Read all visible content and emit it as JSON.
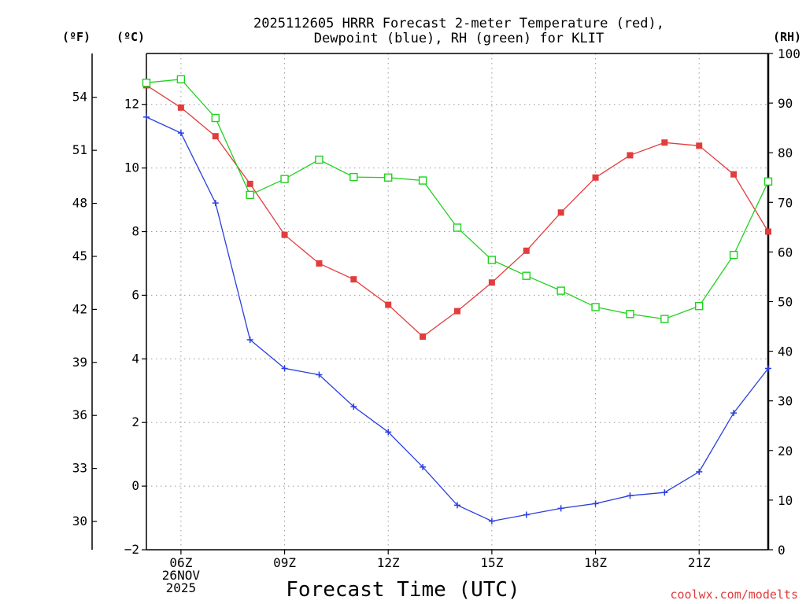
{
  "title_line1": "2025112605 HRRR Forecast 2-meter Temperature (red),",
  "title_line2": "Dewpoint (blue), RH (green) for KLIT",
  "credit": "coolwx.com/modelts",
  "chart_data": {
    "type": "line",
    "title": "2025112605 HRRR Forecast 2-meter Temperature (red), Dewpoint (blue), RH (green) for KLIT",
    "xlabel": "Forecast Time (UTC)",
    "x": [
      5,
      6,
      7,
      8,
      9,
      10,
      11,
      12,
      13,
      14,
      15,
      16,
      17,
      18,
      19,
      20,
      21,
      22,
      23
    ],
    "xlim": [
      5,
      23
    ],
    "x_ticks": [
      {
        "x": 6,
        "lines": [
          "06Z",
          "26NOV",
          "2025"
        ]
      },
      {
        "x": 9,
        "lines": [
          "09Z"
        ]
      },
      {
        "x": 12,
        "lines": [
          "12Z"
        ]
      },
      {
        "x": 15,
        "lines": [
          "15Z"
        ]
      },
      {
        "x": 18,
        "lines": [
          "18Z"
        ]
      },
      {
        "x": 21,
        "lines": [
          "21Z"
        ]
      }
    ],
    "left_axis_c": {
      "unit": "(ºC)",
      "range": [
        -2,
        13.6
      ],
      "ticks": [
        -2,
        0,
        2,
        4,
        6,
        8,
        10,
        12
      ]
    },
    "left_axis_f": {
      "unit": "(ºF)",
      "ticks": [
        30,
        33,
        36,
        39,
        42,
        45,
        48,
        51,
        54
      ]
    },
    "right_axis_rh": {
      "unit": "(RH)",
      "range": [
        0,
        100
      ],
      "ticks": [
        0,
        10,
        20,
        30,
        40,
        50,
        60,
        70,
        80,
        90,
        100
      ]
    },
    "grid": true,
    "series": [
      {
        "name": "2-meter Temperature",
        "color": "#e23c3c",
        "marker": "filled-square",
        "axis": "C",
        "values": [
          12.6,
          11.9,
          11.0,
          9.5,
          7.9,
          7.0,
          6.5,
          5.7,
          4.7,
          5.5,
          6.4,
          7.4,
          8.6,
          9.7,
          10.4,
          10.8,
          10.7,
          9.8,
          8.0
        ]
      },
      {
        "name": "Dewpoint",
        "color": "#2a3fe0",
        "marker": "plus",
        "axis": "C",
        "values": [
          11.6,
          11.1,
          8.9,
          4.6,
          3.7,
          3.5,
          2.5,
          1.7,
          0.6,
          -0.6,
          -1.1,
          -0.9,
          -0.7,
          -0.55,
          -0.3,
          -0.2,
          0.45,
          2.3,
          3.7
        ]
      },
      {
        "name": "RH",
        "color": "#1fd21f",
        "marker": "open-square",
        "axis": "RH",
        "values": [
          94.1,
          94.8,
          87.0,
          71.5,
          74.7,
          78.6,
          75.1,
          75.0,
          74.4,
          64.9,
          58.4,
          55.2,
          52.2,
          48.9,
          47.5,
          46.5,
          49.1,
          59.4,
          74.2
        ]
      }
    ]
  }
}
